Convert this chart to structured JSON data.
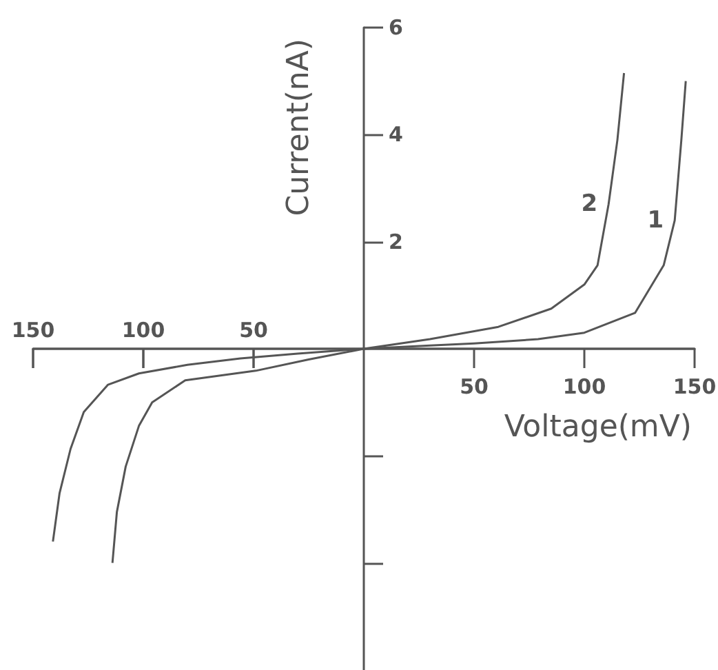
{
  "chart_data": {
    "type": "line",
    "xlabel": "Voltage(mV)",
    "ylabel": "Current(nA)",
    "xlim": [
      -150,
      150
    ],
    "ylim": [
      -6,
      6
    ],
    "xticks": [
      {
        "value": -150,
        "label": null
      },
      {
        "value": -100,
        "label": null
      },
      {
        "value": -50,
        "label": null
      },
      50,
      100,
      150
    ],
    "x2lim": [
      -150,
      150
    ],
    "x2ticks": [
      {
        "value": -150,
        "label": "150"
      },
      {
        "value": -100,
        "label": "100"
      },
      {
        "value": -50,
        "label": "50"
      }
    ],
    "yticks": [
      {
        "value": -4,
        "label": null
      },
      {
        "value": -2,
        "label": null
      },
      2,
      4,
      6
    ],
    "grid": false,
    "legend": false,
    "marker": "none",
    "line_style": "solid",
    "series": [
      {
        "name": "1",
        "color": "#555555",
        "x": [
          -141,
          -138,
          -133,
          -127,
          -116,
          -102,
          -80,
          -56,
          -30,
          0,
          30,
          50,
          79,
          100,
          123,
          136,
          141,
          144,
          146
        ],
        "values": [
          -3.6,
          -2.7,
          -1.87,
          -1.18,
          -0.67,
          -0.46,
          -0.3,
          -0.18,
          -0.09,
          0,
          0.06,
          0.1,
          0.18,
          0.3,
          0.67,
          1.56,
          2.4,
          3.9,
          5.0
        ]
      },
      {
        "name": "2",
        "color": "#555555",
        "x": [
          -114,
          -112,
          -108,
          -102,
          -96,
          -81,
          -49,
          -25,
          0,
          30,
          61,
          85,
          100,
          106,
          111,
          115,
          118
        ],
        "values": [
          -4.0,
          -3.05,
          -2.2,
          -1.44,
          -1.0,
          -0.59,
          -0.41,
          -0.2,
          0,
          0.18,
          0.41,
          0.75,
          1.2,
          1.56,
          2.7,
          3.9,
          5.15
        ]
      }
    ]
  }
}
